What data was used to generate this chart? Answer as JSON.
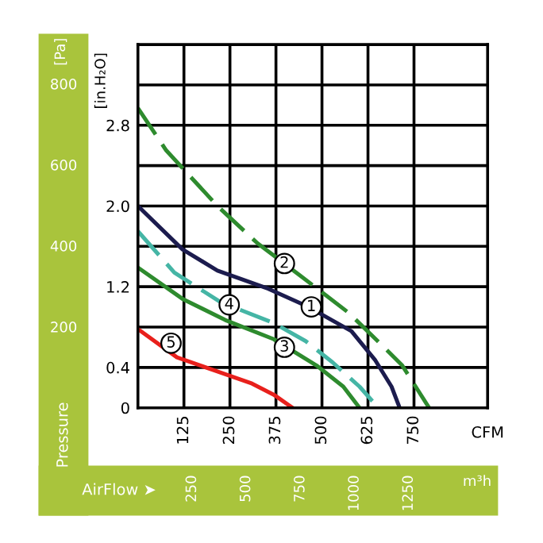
{
  "chart_data": {
    "type": "line",
    "ylabel": "[in.H₂O]",
    "y2label": "[Pa]",
    "xlabel": "CFM",
    "x2label": "m³h",
    "xlim": [
      0,
      950
    ],
    "xticks": [
      125,
      250,
      375,
      500,
      625,
      750
    ],
    "x2lim": [
      0,
      1614
    ],
    "x2ticks": [
      250,
      500,
      750,
      1000,
      1250
    ],
    "ylim": [
      0,
      3.6
    ],
    "yticks": [
      0,
      0.4,
      {
        "value": 0.8,
        "label": null
      },
      1.2,
      {
        "value": 1.6,
        "label": null
      },
      {
        "value": 2.0,
        "label": "2.0"
      },
      {
        "value": 2.4,
        "label": null
      },
      2.8,
      {
        "value": 3.2,
        "label": null
      },
      {
        "value": 3.6,
        "label": null
      }
    ],
    "y2lim": [
      0,
      897
    ],
    "y2ticks": [
      200,
      400,
      600,
      800
    ],
    "grid": true,
    "marker": "none",
    "series": [
      {
        "color": "#1c1c4e",
        "line_style": "solid",
        "x": [
          0,
          121,
          216,
          354,
          463,
          580,
          645,
          689,
          711
        ],
        "values": [
          2.0,
          1.57,
          1.36,
          1.18,
          1.0,
          0.76,
          0.47,
          0.21,
          0
        ]
      },
      {
        "color": "#2e8b2e",
        "line_style": "dashed",
        "x": [
          0,
          77,
          216,
          325,
          441,
          573,
          660,
          718,
          791
        ],
        "values": [
          2.97,
          2.55,
          2.0,
          1.63,
          1.31,
          0.94,
          0.63,
          0.42,
          0
        ]
      },
      {
        "color": "#2e8b2e",
        "line_style": "solid",
        "x": [
          0,
          121,
          237,
          369,
          485,
          558,
          602
        ],
        "values": [
          1.39,
          1.08,
          0.87,
          0.68,
          0.42,
          0.21,
          0
        ]
      },
      {
        "color": "#45b5a5",
        "line_style": "dashed",
        "x": [
          0,
          99,
          223,
          369,
          456,
          529,
          602,
          653
        ],
        "values": [
          1.75,
          1.34,
          1.05,
          0.84,
          0.66,
          0.45,
          0.21,
          0
        ]
      },
      {
        "color": "#e8201c",
        "line_style": "solid",
        "x": [
          0,
          106,
          208,
          310,
          369,
          420
        ],
        "values": [
          0.78,
          0.5,
          0.37,
          0.24,
          0.13,
          0
        ]
      }
    ],
    "annotations": [
      "Pressure",
      "AirFlow ➤",
      {
        "text": "1",
        "x": 471,
        "y": 1.0
      },
      {
        "text": "2",
        "x": 398,
        "y": 1.43
      },
      {
        "text": "3",
        "x": 398,
        "y": 0.6
      },
      {
        "text": "4",
        "x": 248,
        "y": 1.02
      },
      {
        "text": "5",
        "x": 90,
        "y": 0.64
      }
    ]
  }
}
